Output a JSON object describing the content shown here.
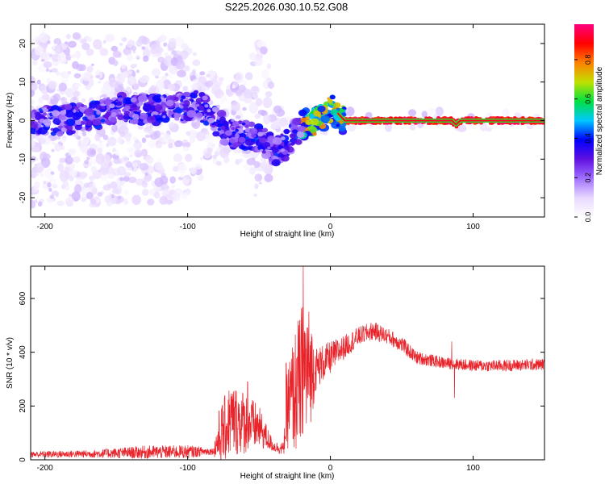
{
  "page_title": "S225.2026.030.10.52.G08",
  "chart_data": [
    {
      "type": "heatmap",
      "title": "S225.2026.030.10.52.G08",
      "xlabel": "Height of straight line (km)",
      "ylabel": "Frequency (Hz)",
      "xlim": [
        -210,
        150
      ],
      "ylim": [
        -25,
        25
      ],
      "xticks": [
        -200,
        -100,
        0,
        100
      ],
      "yticks": [
        -20,
        -10,
        0,
        10,
        20
      ],
      "colorbar": {
        "label": "Normalized spectral amplitude",
        "range": [
          0.0,
          0.98
        ],
        "ticks": [
          0.0,
          0.2,
          0.4,
          0.6,
          0.8
        ],
        "colormap": [
          "#ffffff",
          "#e8d8ff",
          "#a070ff",
          "#6010e0",
          "#0000ff",
          "#00c8ff",
          "#00e040",
          "#c0e000",
          "#ff8000",
          "#ff0000",
          "#ff0080"
        ]
      },
      "ridge": {
        "x": [
          -210,
          -190,
          -170,
          -150,
          -130,
          -110,
          -95,
          -88,
          -80,
          -72,
          -62,
          -50,
          -40,
          -33,
          -25,
          -18,
          -10,
          -5,
          0,
          5,
          10,
          20,
          40,
          60,
          85,
          88,
          91,
          110,
          130,
          150
        ],
        "y": [
          0,
          0,
          1,
          3,
          3,
          3,
          4,
          3,
          0,
          -3,
          -4,
          -4,
          -8,
          -7,
          -3,
          -1,
          0,
          1,
          3,
          2,
          0,
          0,
          0,
          0,
          0,
          -1,
          0,
          0,
          0,
          0
        ]
      },
      "noise_density": {
        "x": [
          -210,
          -180,
          -150,
          -120,
          -100,
          -90,
          -80,
          -60,
          -50,
          -45,
          -40,
          -30,
          -20,
          0,
          150
        ],
        "density": [
          0.9,
          0.9,
          0.9,
          0.8,
          0.7,
          0.5,
          0.5,
          0.5,
          0.7,
          0.6,
          0.3,
          0.2,
          0.1,
          0.05,
          0.02
        ],
        "spread_hz": [
          22,
          22,
          22,
          22,
          20,
          15,
          12,
          12,
          22,
          22,
          8,
          6,
          4,
          3,
          2
        ]
      }
    },
    {
      "type": "line",
      "xlabel": "Height of straight line (km)",
      "ylabel": "SNR (10 * v/v)",
      "xlim": [
        -210,
        150
      ],
      "ylim": [
        0,
        720
      ],
      "xticks": [
        -200,
        -100,
        0,
        100
      ],
      "yticks": [
        0,
        200,
        400,
        600
      ],
      "color": "#e8232a",
      "envelope": {
        "x": [
          -210,
          -170,
          -130,
          -100,
          -82,
          -78,
          -70,
          -60,
          -50,
          -40,
          -33,
          -30,
          -25,
          -22,
          -20,
          -18,
          -15,
          -10,
          0,
          10,
          20,
          30,
          40,
          50,
          60,
          80,
          100,
          120,
          150
        ],
        "mean": [
          20,
          22,
          28,
          30,
          32,
          80,
          150,
          140,
          120,
          50,
          40,
          200,
          250,
          280,
          300,
          320,
          330,
          340,
          380,
          420,
          460,
          480,
          460,
          430,
          380,
          360,
          350,
          350,
          355
        ],
        "amplitude": [
          12,
          14,
          25,
          25,
          12,
          110,
          140,
          120,
          80,
          20,
          25,
          160,
          230,
          260,
          280,
          300,
          240,
          80,
          60,
          45,
          35,
          35,
          30,
          30,
          25,
          22,
          22,
          22,
          22
        ]
      },
      "spikes": [
        {
          "x": -19,
          "y": 720
        },
        {
          "x": -31,
          "y": 360
        },
        {
          "x": 85,
          "y": 440
        },
        {
          "x": 87,
          "y": 230
        },
        {
          "x": -58,
          "y": 290
        }
      ]
    }
  ]
}
